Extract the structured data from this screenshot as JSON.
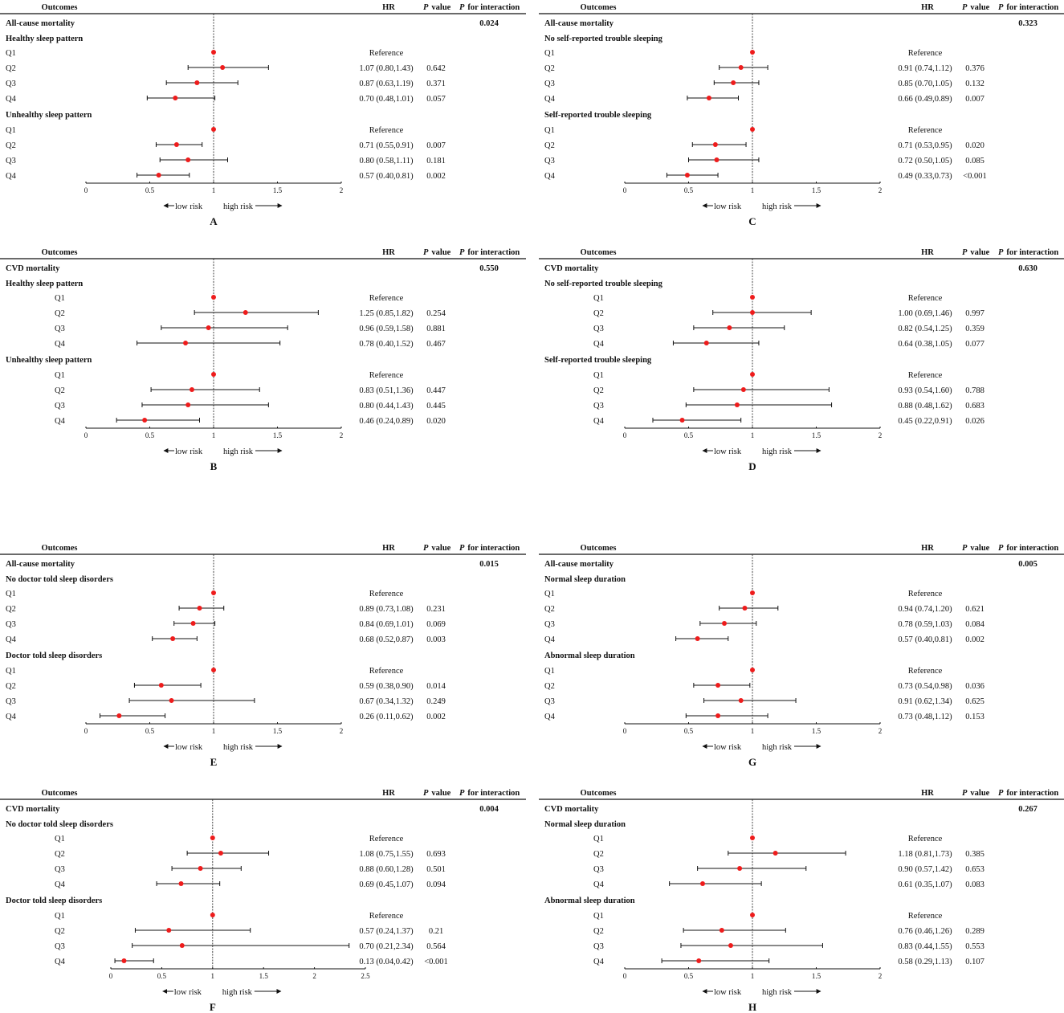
{
  "headers": {
    "outcomes": "Outcomes",
    "hr": "HR",
    "p": "P",
    "value": "value",
    "for_interaction": "for interaction"
  },
  "arrows": {
    "low": "low risk",
    "high": "high risk"
  },
  "colors": {
    "point": "#ee1c1c",
    "line": "#111111"
  },
  "chart_data": [
    {
      "type": "forest",
      "letter": "A",
      "outcome": "All-cause mortality",
      "p_interaction": "0.024",
      "axis": {
        "min": 0,
        "max": 2,
        "ticks": [
          "0",
          "0.5",
          "1",
          "1.5",
          "2"
        ],
        "reference_line": 1
      },
      "groups": [
        {
          "label": "Healthy sleep pattern",
          "rows": [
            {
              "q": "Q1",
              "hr": 1,
              "lo": null,
              "hi": null,
              "text": "Reference",
              "p": ""
            },
            {
              "q": "Q2",
              "hr": 1.07,
              "lo": 0.8,
              "hi": 1.43,
              "text": "1.07 (0.80,1.43)",
              "p": "0.642"
            },
            {
              "q": "Q3",
              "hr": 0.87,
              "lo": 0.63,
              "hi": 1.19,
              "text": "0.87 (0.63,1.19)",
              "p": "0.371"
            },
            {
              "q": "Q4",
              "hr": 0.7,
              "lo": 0.48,
              "hi": 1.01,
              "text": "0.70 (0.48,1.01)",
              "p": "0.057"
            }
          ]
        },
        {
          "label": "Unhealthy sleep pattern",
          "rows": [
            {
              "q": "Q1",
              "hr": 1,
              "lo": null,
              "hi": null,
              "text": "Reference",
              "p": ""
            },
            {
              "q": "Q2",
              "hr": 0.71,
              "lo": 0.55,
              "hi": 0.91,
              "text": "0.71 (0.55,0.91)",
              "p": "0.007"
            },
            {
              "q": "Q3",
              "hr": 0.8,
              "lo": 0.58,
              "hi": 1.11,
              "text": "0.80 (0.58,1.11)",
              "p": "0.181"
            },
            {
              "q": "Q4",
              "hr": 0.57,
              "lo": 0.4,
              "hi": 0.81,
              "text": "0.57 (0.40,0.81)",
              "p": "0.002"
            }
          ]
        }
      ]
    },
    {
      "type": "forest",
      "letter": "B",
      "outcome": "CVD mortality",
      "p_interaction": "0.550",
      "axis": {
        "min": 0,
        "max": 2,
        "ticks": [
          "0",
          "0.5",
          "1",
          "1.5",
          "2"
        ],
        "reference_line": 1
      },
      "groups": [
        {
          "label": "Healthy sleep pattern",
          "rows": [
            {
              "q": "Q1",
              "hr": 1,
              "lo": null,
              "hi": null,
              "text": "Reference",
              "p": ""
            },
            {
              "q": "Q2",
              "hr": 1.25,
              "lo": 0.85,
              "hi": 1.82,
              "text": "1.25 (0.85,1.82)",
              "p": "0.254"
            },
            {
              "q": "Q3",
              "hr": 0.96,
              "lo": 0.59,
              "hi": 1.58,
              "text": "0.96 (0.59,1.58)",
              "p": "0.881"
            },
            {
              "q": "Q4",
              "hr": 0.78,
              "lo": 0.4,
              "hi": 1.52,
              "text": "0.78 (0.40,1.52)",
              "p": "0.467"
            }
          ]
        },
        {
          "label": "Unhealthy sleep pattern",
          "rows": [
            {
              "q": "Q1",
              "hr": 1,
              "lo": null,
              "hi": null,
              "text": "Reference",
              "p": ""
            },
            {
              "q": "Q2",
              "hr": 0.83,
              "lo": 0.51,
              "hi": 1.36,
              "text": "0.83 (0.51,1.36)",
              "p": "0.447"
            },
            {
              "q": "Q3",
              "hr": 0.8,
              "lo": 0.44,
              "hi": 1.43,
              "text": "0.80 (0.44,1.43)",
              "p": "0.445"
            },
            {
              "q": "Q4",
              "hr": 0.46,
              "lo": 0.24,
              "hi": 0.89,
              "text": "0.46 (0.24,0.89)",
              "p": "0.020"
            }
          ]
        }
      ]
    },
    {
      "type": "forest",
      "letter": "C",
      "outcome": "All-cause mortality",
      "p_interaction": "0.323",
      "axis": {
        "min": 0,
        "max": 2,
        "ticks": [
          "0",
          "0.5",
          "1",
          "1.5",
          "2"
        ],
        "reference_line": 1
      },
      "groups": [
        {
          "label": "No self-reported trouble sleeping",
          "rows": [
            {
              "q": "Q1",
              "hr": 1,
              "lo": null,
              "hi": null,
              "text": "Reference",
              "p": ""
            },
            {
              "q": "Q2",
              "hr": 0.91,
              "lo": 0.74,
              "hi": 1.12,
              "text": "0.91 (0.74,1.12)",
              "p": "0.376"
            },
            {
              "q": "Q3",
              "hr": 0.85,
              "lo": 0.7,
              "hi": 1.05,
              "text": "0.85 (0.70,1.05)",
              "p": "0.132"
            },
            {
              "q": "Q4",
              "hr": 0.66,
              "lo": 0.49,
              "hi": 0.89,
              "text": "0.66 (0.49,0.89)",
              "p": "0.007"
            }
          ]
        },
        {
          "label": "Self-reported trouble sleeping",
          "rows": [
            {
              "q": "Q1",
              "hr": 1,
              "lo": null,
              "hi": null,
              "text": "Reference",
              "p": ""
            },
            {
              "q": "Q2",
              "hr": 0.71,
              "lo": 0.53,
              "hi": 0.95,
              "text": "0.71 (0.53,0.95)",
              "p": "0.020"
            },
            {
              "q": "Q3",
              "hr": 0.72,
              "lo": 0.5,
              "hi": 1.05,
              "text": "0.72 (0.50,1.05)",
              "p": "0.085"
            },
            {
              "q": "Q4",
              "hr": 0.49,
              "lo": 0.33,
              "hi": 0.73,
              "text": "0.49 (0.33,0.73)",
              "p": "<0.001"
            }
          ]
        }
      ]
    },
    {
      "type": "forest",
      "letter": "D",
      "outcome": "CVD mortality",
      "p_interaction": "0.630",
      "axis": {
        "min": 0,
        "max": 2,
        "ticks": [
          "0",
          "0.5",
          "1",
          "1.5",
          "2"
        ],
        "reference_line": 1
      },
      "groups": [
        {
          "label": "No self-reported trouble sleeping",
          "rows": [
            {
              "q": "Q1",
              "hr": 1,
              "lo": null,
              "hi": null,
              "text": "Reference",
              "p": ""
            },
            {
              "q": "Q2",
              "hr": 1.0,
              "lo": 0.69,
              "hi": 1.46,
              "text": "1.00 (0.69,1.46)",
              "p": "0.997"
            },
            {
              "q": "Q3",
              "hr": 0.82,
              "lo": 0.54,
              "hi": 1.25,
              "text": "0.82 (0.54,1.25)",
              "p": "0.359"
            },
            {
              "q": "Q4",
              "hr": 0.64,
              "lo": 0.38,
              "hi": 1.05,
              "text": "0.64 (0.38,1.05)",
              "p": "0.077"
            }
          ]
        },
        {
          "label": "Self-reported trouble sleeping",
          "rows": [
            {
              "q": "Q1",
              "hr": 1,
              "lo": null,
              "hi": null,
              "text": "Reference",
              "p": ""
            },
            {
              "q": "Q2",
              "hr": 0.93,
              "lo": 0.54,
              "hi": 1.6,
              "text": "0.93 (0.54,1.60)",
              "p": "0.788"
            },
            {
              "q": "Q3",
              "hr": 0.88,
              "lo": 0.48,
              "hi": 1.62,
              "text": "0.88 (0.48,1.62)",
              "p": "0.683"
            },
            {
              "q": "Q4",
              "hr": 0.45,
              "lo": 0.22,
              "hi": 0.91,
              "text": "0.45 (0.22,0.91)",
              "p": "0.026"
            }
          ]
        }
      ]
    },
    {
      "type": "forest",
      "letter": "E",
      "outcome": "All-cause mortality",
      "p_interaction": "0.015",
      "axis": {
        "min": 0,
        "max": 2,
        "ticks": [
          "0",
          "0.5",
          "1",
          "1.5",
          "2"
        ],
        "reference_line": 1
      },
      "groups": [
        {
          "label": "No doctor told sleep disorders",
          "rows": [
            {
              "q": "Q1",
              "hr": 1,
              "lo": null,
              "hi": null,
              "text": "Reference",
              "p": ""
            },
            {
              "q": "Q2",
              "hr": 0.89,
              "lo": 0.73,
              "hi": 1.08,
              "text": "0.89 (0.73,1.08)",
              "p": "0.231"
            },
            {
              "q": "Q3",
              "hr": 0.84,
              "lo": 0.69,
              "hi": 1.01,
              "text": "0.84 (0.69,1.01)",
              "p": "0.069"
            },
            {
              "q": "Q4",
              "hr": 0.68,
              "lo": 0.52,
              "hi": 0.87,
              "text": "0.68 (0.52,0.87)",
              "p": "0.003"
            }
          ]
        },
        {
          "label": "Doctor told sleep disorders",
          "rows": [
            {
              "q": "Q1",
              "hr": 1,
              "lo": null,
              "hi": null,
              "text": "Reference",
              "p": ""
            },
            {
              "q": "Q2",
              "hr": 0.59,
              "lo": 0.38,
              "hi": 0.9,
              "text": "0.59 (0.38,0.90)",
              "p": "0.014"
            },
            {
              "q": "Q3",
              "hr": 0.67,
              "lo": 0.34,
              "hi": 1.32,
              "text": "0.67 (0.34,1.32)",
              "p": "0.249"
            },
            {
              "q": "Q4",
              "hr": 0.26,
              "lo": 0.11,
              "hi": 0.62,
              "text": "0.26 (0.11,0.62)",
              "p": "0.002"
            }
          ]
        }
      ]
    },
    {
      "type": "forest",
      "letter": "F",
      "outcome": "CVD mortality",
      "p_interaction": "0.004",
      "axis": {
        "min": 0,
        "max": 2.5,
        "ticks": [
          "0",
          "0.5",
          "1",
          "1.5",
          "2",
          "2.5"
        ],
        "reference_line": 1
      },
      "groups": [
        {
          "label": "No doctor told sleep disorders",
          "rows": [
            {
              "q": "Q1",
              "hr": 1,
              "lo": null,
              "hi": null,
              "text": "Reference",
              "p": ""
            },
            {
              "q": "Q2",
              "hr": 1.08,
              "lo": 0.75,
              "hi": 1.55,
              "text": "1.08 (0.75,1.55)",
              "p": "0.693"
            },
            {
              "q": "Q3",
              "hr": 0.88,
              "lo": 0.6,
              "hi": 1.28,
              "text": "0.88 (0.60,1.28)",
              "p": "0.501"
            },
            {
              "q": "Q4",
              "hr": 0.69,
              "lo": 0.45,
              "hi": 1.07,
              "text": "0.69 (0.45,1.07)",
              "p": "0.094"
            }
          ]
        },
        {
          "label": "Doctor told sleep disorders",
          "rows": [
            {
              "q": "Q1",
              "hr": 1,
              "lo": null,
              "hi": null,
              "text": "Reference",
              "p": ""
            },
            {
              "q": "Q2",
              "hr": 0.57,
              "lo": 0.24,
              "hi": 1.37,
              "text": "0.57 (0.24,1.37)",
              "p": "0.21"
            },
            {
              "q": "Q3",
              "hr": 0.7,
              "lo": 0.21,
              "hi": 2.34,
              "text": "0.70 (0.21,2.34)",
              "p": "0.564"
            },
            {
              "q": "Q4",
              "hr": 0.13,
              "lo": 0.04,
              "hi": 0.42,
              "text": "0.13 (0.04,0.42)",
              "p": "<0.001"
            }
          ]
        }
      ]
    },
    {
      "type": "forest",
      "letter": "G",
      "outcome": "All-cause mortality",
      "p_interaction": "0.005",
      "axis": {
        "min": 0,
        "max": 2,
        "ticks": [
          "0",
          "0.5",
          "1",
          "1.5",
          "2"
        ],
        "reference_line": 1
      },
      "groups": [
        {
          "label": "Normal sleep duration",
          "rows": [
            {
              "q": "Q1",
              "hr": 1,
              "lo": null,
              "hi": null,
              "text": "Reference",
              "p": ""
            },
            {
              "q": "Q2",
              "hr": 0.94,
              "lo": 0.74,
              "hi": 1.2,
              "text": "0.94 (0.74,1.20)",
              "p": "0.621"
            },
            {
              "q": "Q3",
              "hr": 0.78,
              "lo": 0.59,
              "hi": 1.03,
              "text": "0.78 (0.59,1.03)",
              "p": "0.084"
            },
            {
              "q": "Q4",
              "hr": 0.57,
              "lo": 0.4,
              "hi": 0.81,
              "text": "0.57 (0.40,0.81)",
              "p": "0.002"
            }
          ]
        },
        {
          "label": "Abnormal sleep duration",
          "rows": [
            {
              "q": "Q1",
              "hr": 1,
              "lo": null,
              "hi": null,
              "text": "Reference",
              "p": ""
            },
            {
              "q": "Q2",
              "hr": 0.73,
              "lo": 0.54,
              "hi": 0.98,
              "text": "0.73 (0.54,0.98)",
              "p": "0.036"
            },
            {
              "q": "Q3",
              "hr": 0.91,
              "lo": 0.62,
              "hi": 1.34,
              "text": "0.91 (0.62,1.34)",
              "p": "0.625"
            },
            {
              "q": "Q4",
              "hr": 0.73,
              "lo": 0.48,
              "hi": 1.12,
              "text": "0.73 (0.48,1.12)",
              "p": "0.153"
            }
          ]
        }
      ]
    },
    {
      "type": "forest",
      "letter": "H",
      "outcome": "CVD mortality",
      "p_interaction": "0.267",
      "axis": {
        "min": 0,
        "max": 2,
        "ticks": [
          "0",
          "0.5",
          "1",
          "1.5",
          "2"
        ],
        "reference_line": 1
      },
      "groups": [
        {
          "label": "Normal sleep duration",
          "rows": [
            {
              "q": "Q1",
              "hr": 1,
              "lo": null,
              "hi": null,
              "text": "Reference",
              "p": ""
            },
            {
              "q": "Q2",
              "hr": 1.18,
              "lo": 0.81,
              "hi": 1.73,
              "text": "1.18 (0.81,1.73)",
              "p": "0.385"
            },
            {
              "q": "Q3",
              "hr": 0.9,
              "lo": 0.57,
              "hi": 1.42,
              "text": "0.90 (0.57,1.42)",
              "p": "0.653"
            },
            {
              "q": "Q4",
              "hr": 0.61,
              "lo": 0.35,
              "hi": 1.07,
              "text": "0.61 (0.35,1.07)",
              "p": "0.083"
            }
          ]
        },
        {
          "label": "Abnormal sleep duration",
          "rows": [
            {
              "q": "Q1",
              "hr": 1,
              "lo": null,
              "hi": null,
              "text": "Reference",
              "p": ""
            },
            {
              "q": "Q2",
              "hr": 0.76,
              "lo": 0.46,
              "hi": 1.26,
              "text": "0.76 (0.46,1.26)",
              "p": "0.289"
            },
            {
              "q": "Q3",
              "hr": 0.83,
              "lo": 0.44,
              "hi": 1.55,
              "text": "0.83 (0.44,1.55)",
              "p": "0.553"
            },
            {
              "q": "Q4",
              "hr": 0.58,
              "lo": 0.29,
              "hi": 1.13,
              "text": "0.58 (0.29,1.13)",
              "p": "0.107"
            }
          ]
        }
      ]
    }
  ]
}
